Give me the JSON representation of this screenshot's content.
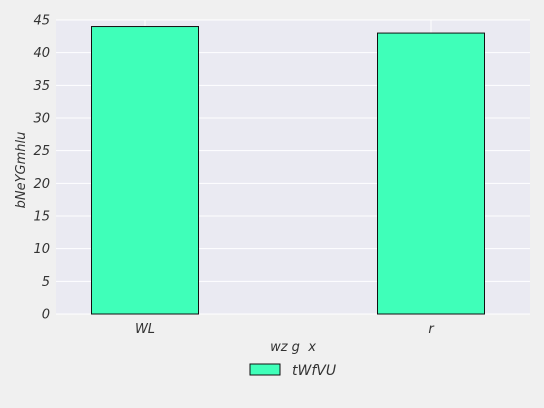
{
  "chart_data": {
    "type": "bar",
    "categories": [
      "WL",
      "r"
    ],
    "series": [
      {
        "name": "tWfVU",
        "values": [
          44,
          43
        ]
      }
    ],
    "xlabel": "wz g  x",
    "ylabel": "bNeYGmhlu",
    "ylim": [
      0,
      45
    ],
    "yticks": [
      0,
      5,
      10,
      15,
      20,
      25,
      30,
      35,
      40,
      45
    ],
    "grid": true,
    "legend_position": "bottom-center"
  },
  "colors": {
    "bar": "#3fffb9",
    "bar_edge": "#111111",
    "plot_background": "#eaeaf2",
    "gridline": "#ffffff",
    "page_background": "#f0f0f0"
  }
}
